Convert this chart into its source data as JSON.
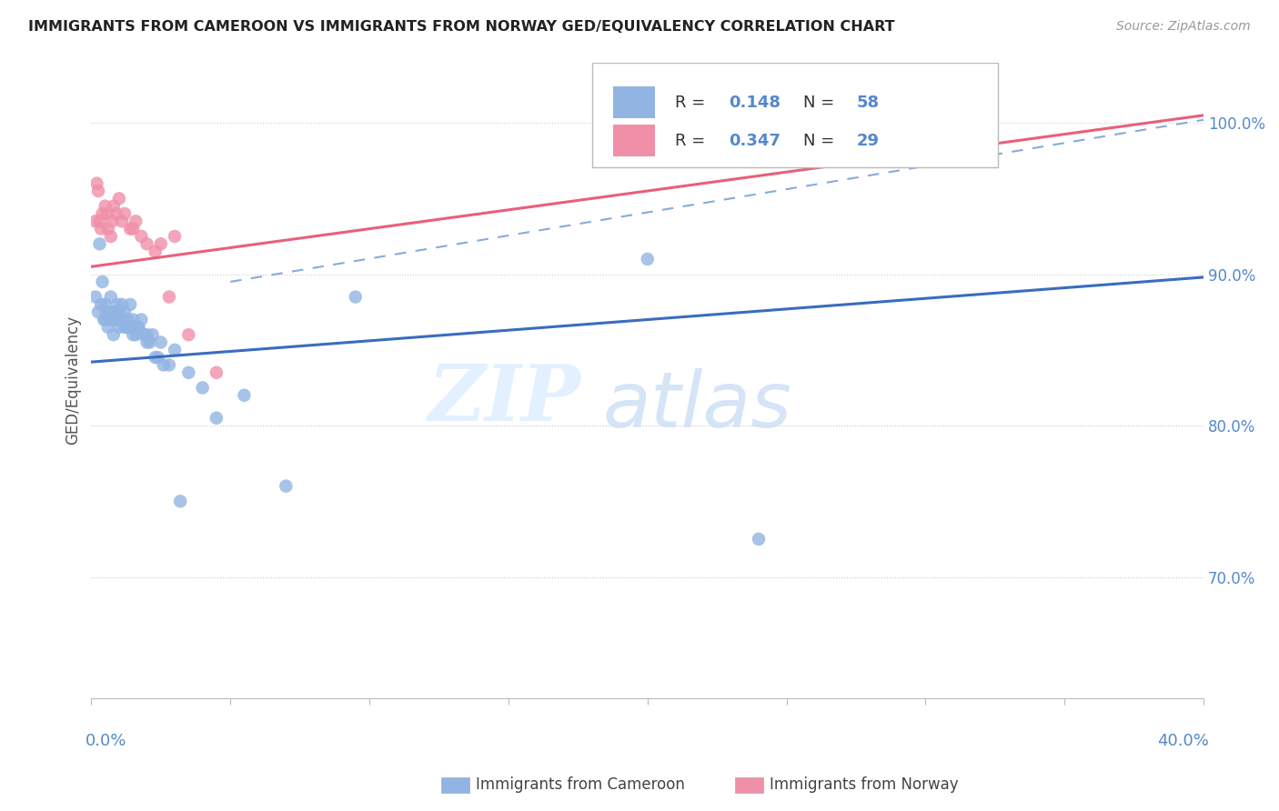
{
  "title": "IMMIGRANTS FROM CAMEROON VS IMMIGRANTS FROM NORWAY GED/EQUIVALENCY CORRELATION CHART",
  "source": "Source: ZipAtlas.com",
  "ylabel": "GED/Equivalency",
  "right_ytick_labels": [
    "70.0%",
    "80.0%",
    "90.0%",
    "100.0%"
  ],
  "right_ytick_vals": [
    70,
    80,
    90,
    100
  ],
  "legend_r1": "0.148",
  "legend_n1": "58",
  "legend_r2": "0.347",
  "legend_n2": "29",
  "cameroon_color": "#92b4e3",
  "norway_color": "#f090a8",
  "trend_blue": "#3a6cc0",
  "trend_pink": "#e8607a",
  "trend_dash_color": "#88aadd",
  "watermark_zip": "ZIP",
  "watermark_atlas": "atlas",
  "cameroon_x": [
    0.15,
    0.25,
    0.3,
    0.35,
    0.4,
    0.45,
    0.5,
    0.55,
    0.6,
    0.65,
    0.7,
    0.75,
    0.8,
    0.85,
    0.9,
    0.95,
    1.0,
    1.0,
    1.1,
    1.1,
    1.2,
    1.2,
    1.3,
    1.3,
    1.4,
    1.4,
    1.5,
    1.5,
    1.6,
    1.7,
    1.8,
    2.0,
    2.0,
    2.2,
    2.4,
    2.5,
    2.8,
    3.0,
    3.5,
    4.0,
    4.5,
    5.5,
    7.0,
    9.5,
    20.0,
    24.0,
    0.5,
    0.7,
    0.9,
    1.1,
    1.3,
    1.5,
    1.7,
    1.9,
    2.1,
    2.3,
    2.6,
    3.2
  ],
  "cameroon_y": [
    88.5,
    87.5,
    92.0,
    88.0,
    89.5,
    87.0,
    88.0,
    87.5,
    86.5,
    87.0,
    88.5,
    87.0,
    86.0,
    87.5,
    87.0,
    88.0,
    87.5,
    86.5,
    87.0,
    88.0,
    86.5,
    87.5,
    86.5,
    87.0,
    88.0,
    86.5,
    87.0,
    86.5,
    86.0,
    86.5,
    87.0,
    86.0,
    85.5,
    86.0,
    84.5,
    85.5,
    84.0,
    85.0,
    83.5,
    82.5,
    80.5,
    82.0,
    76.0,
    88.5,
    91.0,
    72.5,
    87.0,
    87.5,
    87.5,
    87.0,
    86.5,
    86.0,
    86.5,
    86.0,
    85.5,
    84.5,
    84.0,
    75.0
  ],
  "norway_x": [
    0.15,
    0.2,
    0.25,
    0.3,
    0.4,
    0.5,
    0.6,
    0.7,
    0.8,
    0.9,
    1.0,
    1.1,
    1.2,
    1.4,
    1.6,
    1.8,
    2.0,
    2.3,
    2.8,
    3.5,
    4.5,
    22.0,
    30.0,
    0.35,
    0.55,
    0.75,
    1.5,
    2.5,
    3.0
  ],
  "norway_y": [
    93.5,
    96.0,
    95.5,
    93.5,
    94.0,
    94.5,
    93.0,
    92.5,
    94.5,
    94.0,
    95.0,
    93.5,
    94.0,
    93.0,
    93.5,
    92.5,
    92.0,
    91.5,
    88.5,
    86.0,
    83.5,
    97.5,
    97.5,
    93.0,
    94.0,
    93.5,
    93.0,
    92.0,
    92.5
  ],
  "xlim": [
    0,
    40
  ],
  "ylim": [
    62,
    104
  ],
  "blue_trendline": [
    0.0,
    84.2,
    40.0,
    89.8
  ],
  "pink_trendline": [
    0.0,
    90.5,
    40.0,
    100.5
  ],
  "dash_line": [
    5.0,
    89.5,
    40.0,
    100.2
  ]
}
